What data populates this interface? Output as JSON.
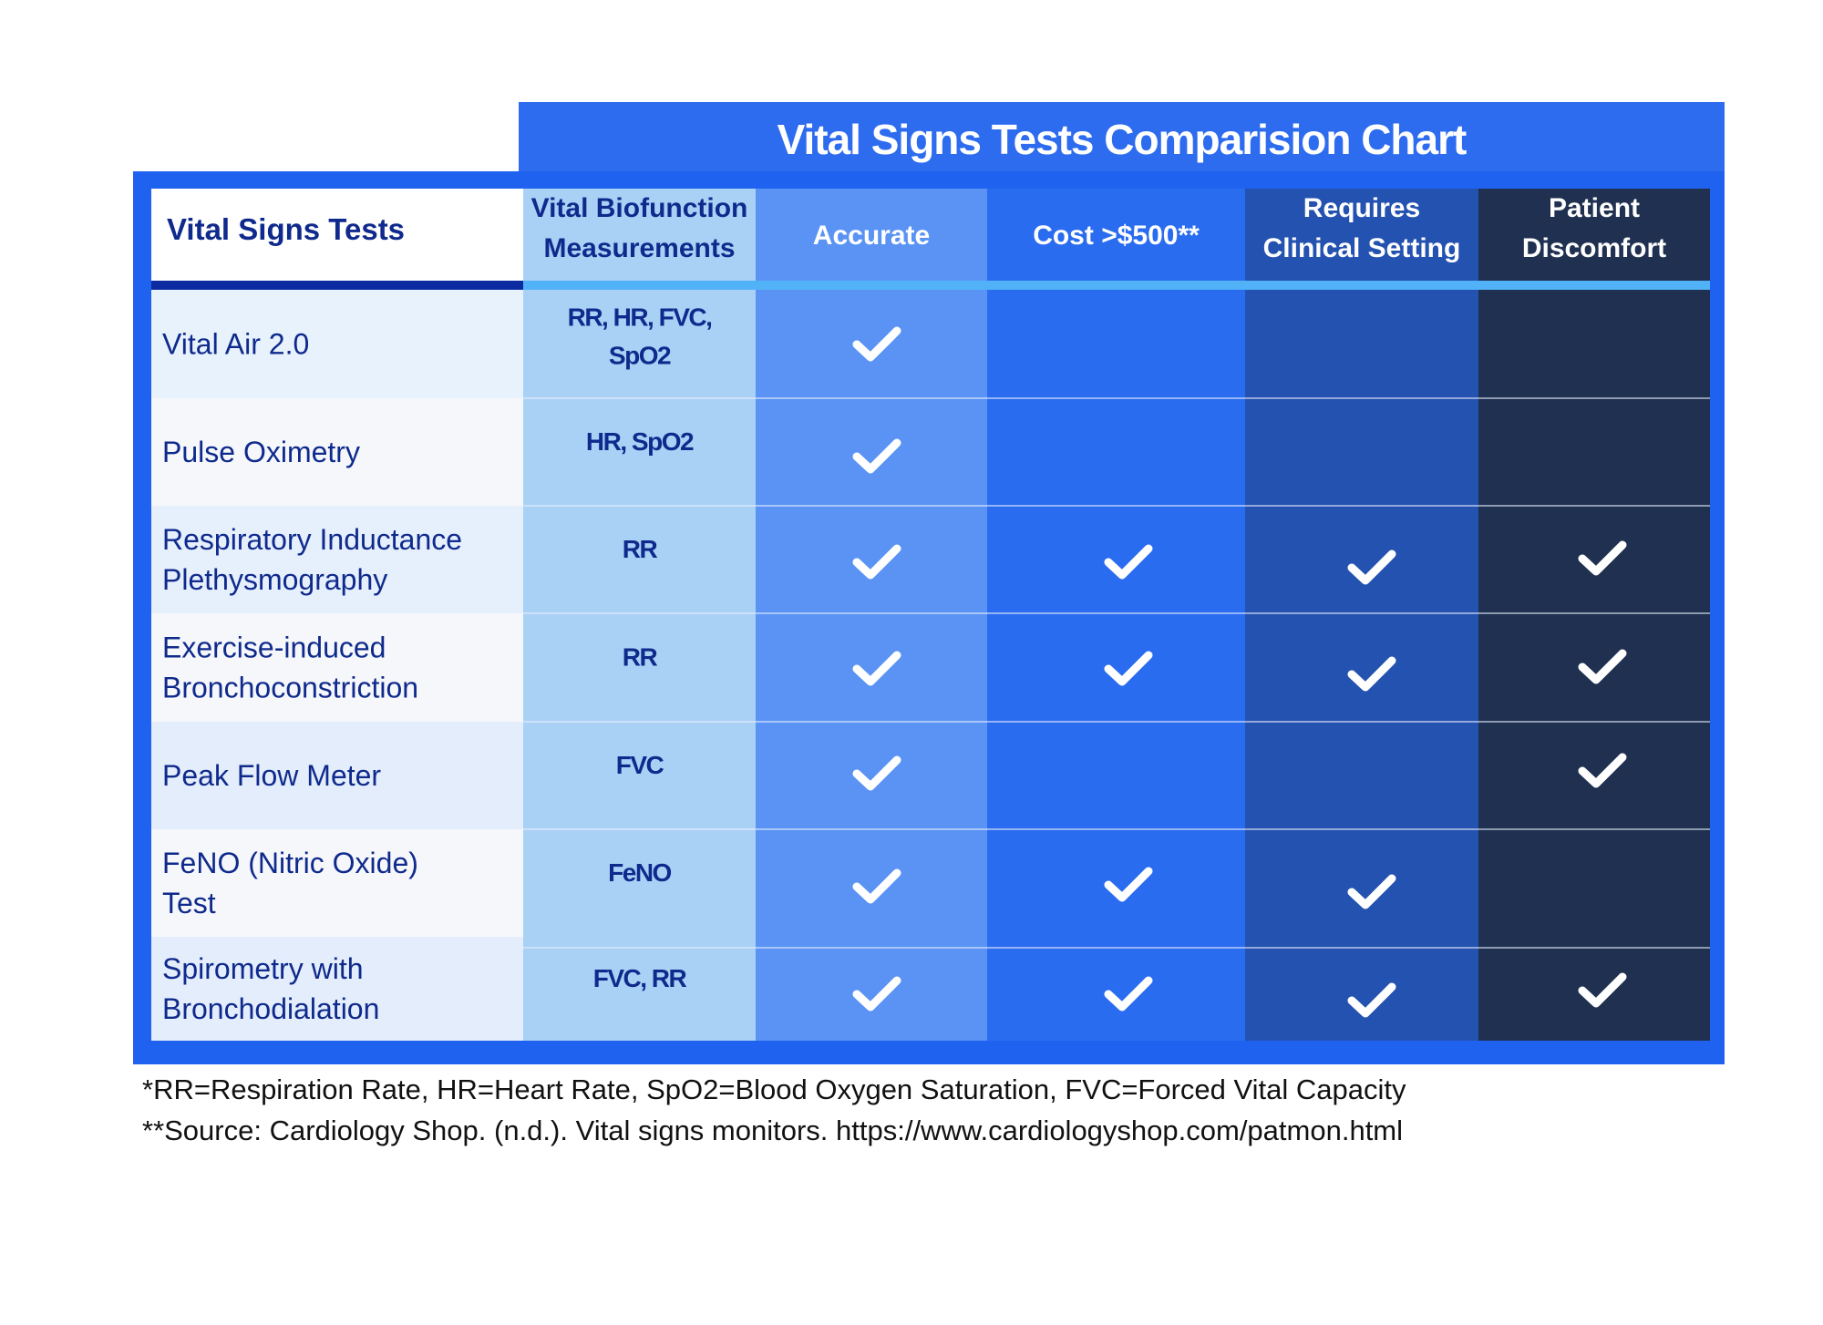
{
  "chart_data": {
    "type": "table",
    "title": "Vital Signs Tests Comparision Chart",
    "columns": [
      "Vital Signs Tests",
      "Vital Biofunction Measurements",
      "Accurate",
      "Cost >$500**",
      "Requires Clinical Setting",
      "Patient Discomfort"
    ],
    "rows": [
      {
        "test": "Vital Air 2.0",
        "measurements": "RR, HR, FVC, SpO2",
        "accurate": true,
        "cost_over_500": false,
        "requires_clinical_setting": false,
        "patient_discomfort": false
      },
      {
        "test": "Pulse Oximetry",
        "measurements": "HR, SpO2",
        "accurate": true,
        "cost_over_500": false,
        "requires_clinical_setting": false,
        "patient_discomfort": false
      },
      {
        "test": "Respiratory Inductance Plethysmography",
        "measurements": "RR",
        "accurate": true,
        "cost_over_500": true,
        "requires_clinical_setting": true,
        "patient_discomfort": true
      },
      {
        "test": "Exercise-induced Bronchoconstriction",
        "measurements": "RR",
        "accurate": true,
        "cost_over_500": true,
        "requires_clinical_setting": true,
        "patient_discomfort": true
      },
      {
        "test": "Peak Flow Meter",
        "measurements": "FVC",
        "accurate": true,
        "cost_over_500": false,
        "requires_clinical_setting": false,
        "patient_discomfort": true
      },
      {
        "test": "FeNO (Nitric Oxide) Test",
        "measurements": "FeNO",
        "accurate": true,
        "cost_over_500": true,
        "requires_clinical_setting": true,
        "patient_discomfort": false
      },
      {
        "test": "Spirometry with Bronchodialation",
        "measurements": "FVC, RR",
        "accurate": true,
        "cost_over_500": true,
        "requires_clinical_setting": true,
        "patient_discomfort": true
      }
    ],
    "colors": {
      "frame": "#1f62f0",
      "title_bar": "#2e6cef",
      "measurements_column": "#a9d1f6",
      "accurate_column": "#5a93f4",
      "cost_column": "#2a6cef",
      "clinical_column": "#2452b0",
      "discomfort_column": "#1f3050",
      "header_text_dark": "#0f2a8c",
      "row_text": "#0f2a8c",
      "check": "#ffffff"
    }
  },
  "footnotes": [
    "*RR=Respiration Rate, HR=Heart Rate, SpO2=Blood Oxygen Saturation, FVC=Forced Vital Capacity",
    "**Source: Cardiology Shop. (n.d.). Vital signs monitors. https://www.cardiologyshop.com/patmon.html"
  ]
}
